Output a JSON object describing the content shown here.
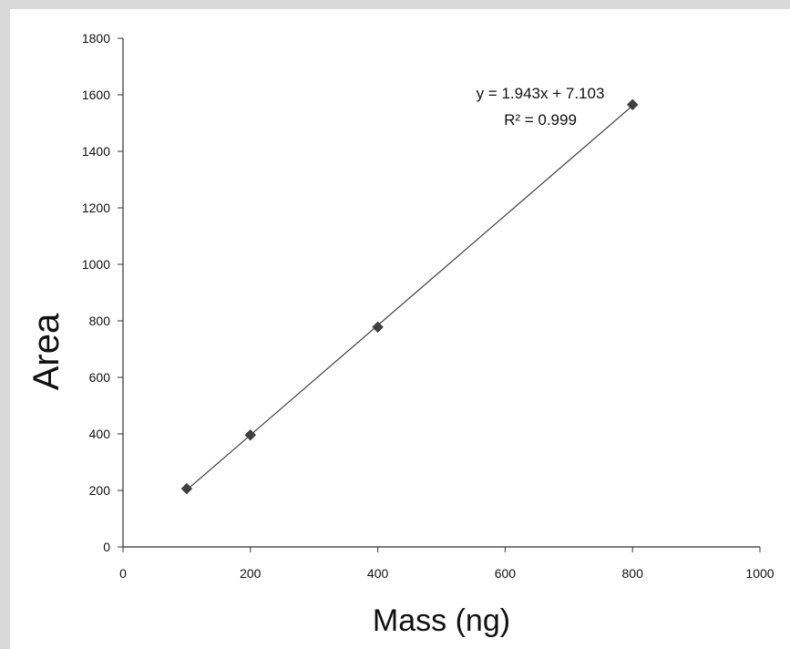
{
  "chart_data": {
    "type": "scatter",
    "title": "",
    "xlabel": "Mass (ng)",
    "ylabel": "Area",
    "xlim": [
      0,
      1000
    ],
    "ylim": [
      0,
      1800
    ],
    "x_ticks": [
      "0",
      "200",
      "400",
      "600",
      "800",
      "1000"
    ],
    "y_ticks": [
      "0",
      "200",
      "400",
      "600",
      "800",
      "1000",
      "1200",
      "1400",
      "1600",
      "1800"
    ],
    "grid": false,
    "legend": "none",
    "series": [
      {
        "x": [
          100,
          200,
          400,
          800
        ],
        "y": [
          206,
          396,
          778,
          1565
        ],
        "marker": "diamond",
        "color": "#404040"
      }
    ],
    "trendline": {
      "type": "linear",
      "slope": 1.943,
      "intercept": 7.103,
      "color": "#404040",
      "equation": "y = 1.943x + 7.103",
      "r_squared": "R² = 0.999"
    }
  }
}
